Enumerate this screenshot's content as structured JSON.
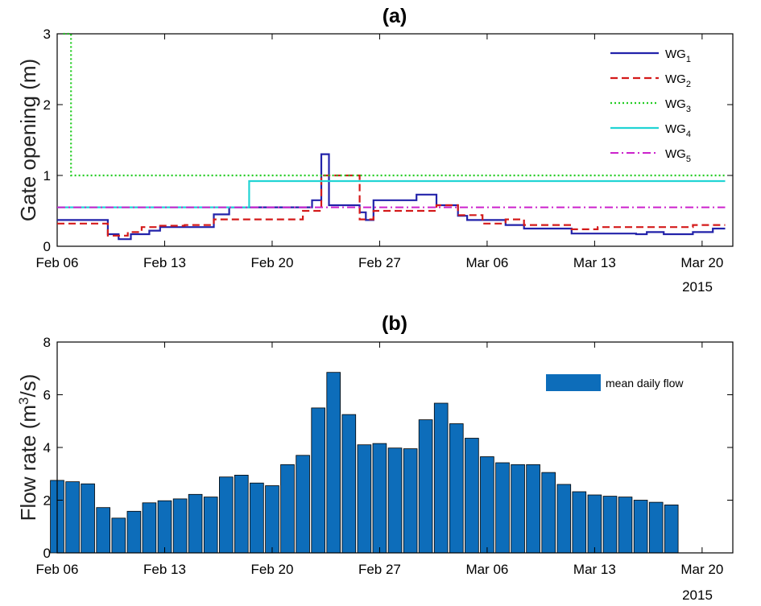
{
  "chart_data": [
    {
      "type": "line",
      "title": "(a)",
      "ylabel": "Gate opening (m)",
      "xlim": [
        0,
        44
      ],
      "ylim": [
        0,
        3
      ],
      "xtick_positions": [
        0,
        7,
        14,
        21,
        28,
        35,
        42
      ],
      "xtick_labels": [
        "Feb 06",
        "Feb 13",
        "Feb 20",
        "Feb 27",
        "Mar 06",
        "Mar 13",
        "Mar 20"
      ],
      "yticks": [
        0,
        1,
        2,
        3
      ],
      "year_label": "2015",
      "legend_position": "top-right",
      "legend": [
        {
          "prefix": "WG",
          "sub": "1"
        },
        {
          "prefix": "WG",
          "sub": "2"
        },
        {
          "prefix": "WG",
          "sub": "3"
        },
        {
          "prefix": "WG",
          "sub": "4"
        },
        {
          "prefix": "WG",
          "sub": "5"
        }
      ],
      "series": [
        {
          "name": "WG1",
          "color": "#2222aa",
          "dash": "",
          "width": 2.2,
          "x": [
            0,
            3.3,
            3.3,
            4,
            4,
            4.8,
            4.8,
            6,
            6,
            6.7,
            6.7,
            10.2,
            10.2,
            11.2,
            11.2,
            16.6,
            16.6,
            17.2,
            17.2,
            17.7,
            17.7,
            19.7,
            19.7,
            20.1,
            20.1,
            20.6,
            20.6,
            23.4,
            23.4,
            24.7,
            24.7,
            26.1,
            26.1,
            26.7,
            26.7,
            29.2,
            29.2,
            30.4,
            30.4,
            33.5,
            33.5,
            35.2,
            35.2,
            37.7,
            37.7,
            38.4,
            38.4,
            39.5,
            39.5,
            41.4,
            41.4,
            42.7,
            42.7,
            43.5
          ],
          "y": [
            0.37,
            0.37,
            0.17,
            0.17,
            0.1,
            0.1,
            0.17,
            0.17,
            0.22,
            0.22,
            0.27,
            0.27,
            0.45,
            0.45,
            0.55,
            0.55,
            0.65,
            0.65,
            1.3,
            1.3,
            0.58,
            0.58,
            0.48,
            0.48,
            0.37,
            0.37,
            0.65,
            0.65,
            0.73,
            0.73,
            0.58,
            0.58,
            0.43,
            0.43,
            0.37,
            0.37,
            0.3,
            0.3,
            0.25,
            0.25,
            0.18,
            0.18,
            0.18,
            0.18,
            0.17,
            0.17,
            0.2,
            0.2,
            0.17,
            0.17,
            0.2,
            0.2,
            0.25,
            0.25
          ]
        },
        {
          "name": "WG2",
          "color": "#d41a1a",
          "dash": "9,5",
          "width": 2.2,
          "x": [
            0,
            3.3,
            3.3,
            4.6,
            4.6,
            5.5,
            5.5,
            6.7,
            6.7,
            8.3,
            8.3,
            10.2,
            10.2,
            11.2,
            11.2,
            16,
            16,
            17.2,
            17.2,
            19.7,
            19.7,
            20.6,
            20.6,
            24.7,
            24.7,
            26.1,
            26.1,
            27.7,
            27.7,
            29.2,
            29.2,
            30.4,
            30.4,
            33.5,
            33.5,
            35.2,
            35.2,
            39.5,
            39.5,
            41.4,
            41.4,
            43.5
          ],
          "y": [
            0.32,
            0.32,
            0.15,
            0.15,
            0.2,
            0.2,
            0.27,
            0.27,
            0.29,
            0.29,
            0.3,
            0.3,
            0.38,
            0.38,
            0.38,
            0.38,
            0.5,
            0.5,
            1.0,
            1.0,
            0.38,
            0.38,
            0.5,
            0.5,
            0.58,
            0.58,
            0.44,
            0.44,
            0.32,
            0.32,
            0.38,
            0.38,
            0.3,
            0.3,
            0.24,
            0.24,
            0.27,
            0.27,
            0.27,
            0.27,
            0.3,
            0.3
          ]
        },
        {
          "name": "WG3",
          "color": "#22cc22",
          "dash": "2,3",
          "width": 2.2,
          "x": [
            0.4,
            0.4,
            0.9,
            0.9,
            43.5
          ],
          "y": [
            3.0,
            3.0,
            3.0,
            1.0,
            1.0
          ]
        },
        {
          "name": "WG4",
          "color": "#22d4d4",
          "dash": "",
          "width": 2.2,
          "x": [
            0,
            12.5,
            12.5,
            43.5
          ],
          "y": [
            0.55,
            0.55,
            0.92,
            0.92
          ]
        },
        {
          "name": "WG5",
          "color": "#cc22cc",
          "dash": "10,4,2,4",
          "width": 2.0,
          "x": [
            0,
            43.5
          ],
          "y": [
            0.55,
            0.55
          ]
        }
      ]
    },
    {
      "type": "bar",
      "title": "(b)",
      "ylabel": "Flow rate (m³/s)",
      "xlim": [
        0,
        44
      ],
      "ylim": [
        0,
        8
      ],
      "xtick_positions": [
        0,
        7,
        14,
        21,
        28,
        35,
        42
      ],
      "xtick_labels": [
        "Feb 06",
        "Feb 13",
        "Feb 20",
        "Feb 27",
        "Mar 06",
        "Mar 13",
        "Mar 20"
      ],
      "yticks": [
        0,
        2,
        4,
        6,
        8
      ],
      "year_label": "2015",
      "bar_color": "#0d6dba",
      "legend_position": "top-right",
      "legend": [
        "mean daily flow"
      ],
      "values": [
        2.75,
        2.7,
        2.62,
        1.72,
        1.32,
        1.58,
        1.9,
        1.98,
        2.05,
        2.22,
        2.12,
        2.88,
        2.95,
        2.65,
        2.55,
        3.35,
        3.7,
        5.5,
        6.85,
        5.25,
        4.1,
        4.15,
        3.98,
        3.95,
        5.05,
        5.68,
        4.9,
        4.35,
        3.65,
        3.42,
        3.35,
        3.35,
        3.05,
        2.6,
        2.32,
        2.2,
        2.15,
        2.12,
        2.0,
        1.92,
        1.82
      ]
    }
  ]
}
